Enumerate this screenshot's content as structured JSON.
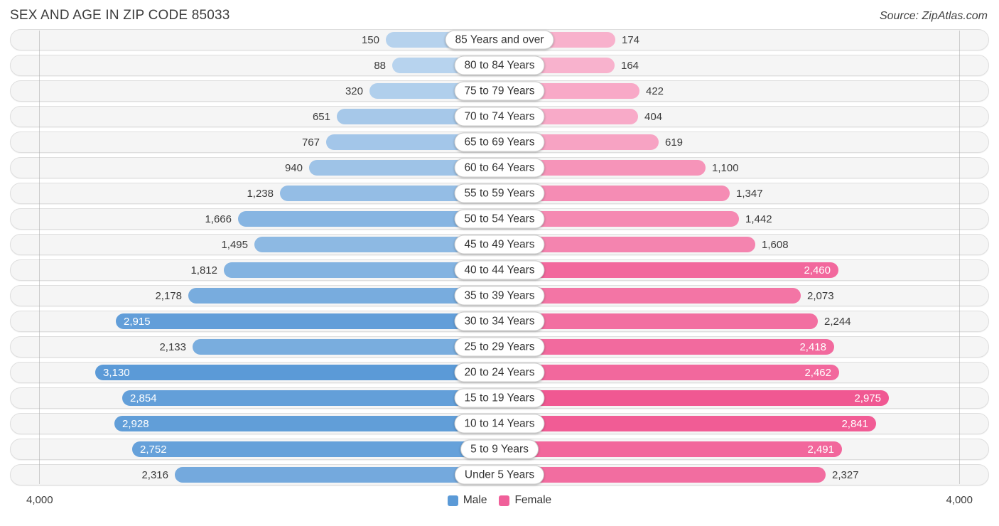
{
  "page": {
    "title": "SEX AND AGE IN ZIP CODE 85033",
    "source": "Source: ZipAtlas.com"
  },
  "legend": {
    "male_label": "Male",
    "female_label": "Female"
  },
  "axis": {
    "left_label": "4,000",
    "right_label": "4,000"
  },
  "colors": {
    "male_base": "#5b9ad7",
    "female_base": "#f0538f",
    "male_legend": "#5b9ad7",
    "female_legend": "#f0609a"
  },
  "chart_data": {
    "type": "bar",
    "subtype": "population-pyramid",
    "title": "SEX AND AGE IN ZIP CODE 85033",
    "categories": [
      "85 Years and over",
      "80 to 84 Years",
      "75 to 79 Years",
      "70 to 74 Years",
      "65 to 69 Years",
      "60 to 64 Years",
      "55 to 59 Years",
      "50 to 54 Years",
      "45 to 49 Years",
      "40 to 44 Years",
      "35 to 39 Years",
      "30 to 34 Years",
      "25 to 29 Years",
      "20 to 24 Years",
      "15 to 19 Years",
      "10 to 14 Years",
      "5 to 9 Years",
      "Under 5 Years"
    ],
    "series": [
      {
        "name": "Male",
        "values": [
          150,
          88,
          320,
          651,
          767,
          940,
          1238,
          1666,
          1495,
          1812,
          2178,
          2915,
          2133,
          3130,
          2854,
          2928,
          2752,
          2316
        ]
      },
      {
        "name": "Female",
        "values": [
          174,
          164,
          422,
          404,
          619,
          1100,
          1347,
          1442,
          1608,
          2460,
          2073,
          2244,
          2418,
          2462,
          2975,
          2841,
          2491,
          2327
        ]
      }
    ],
    "axis_max": 4000,
    "legend_position": "bottom",
    "value_label_inside_threshold": 2400
  }
}
